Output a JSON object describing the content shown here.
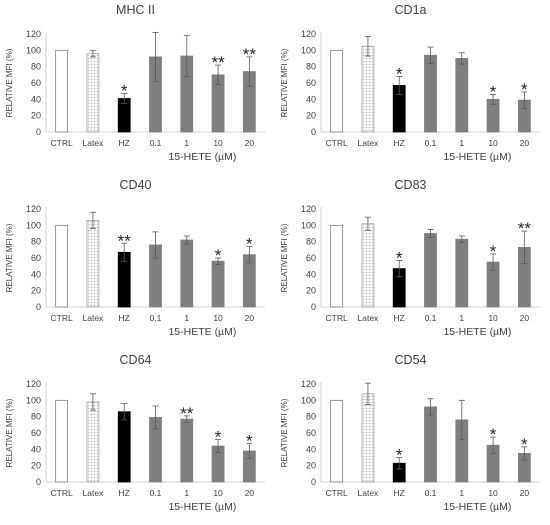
{
  "chart_data": [
    {
      "type": "bar",
      "title": "MHC II",
      "ylabel": "RELATIVE MFI (%)",
      "xlabel": "15-HETE (µM)",
      "categories": [
        "CTRL",
        "Latex",
        "HZ",
        "0.1",
        "1",
        "10",
        "20"
      ],
      "values": [
        100,
        96,
        41,
        92,
        93,
        70,
        74
      ],
      "errors": [
        0,
        4,
        6,
        30,
        25,
        12,
        18
      ],
      "significance": [
        "",
        "",
        "*",
        "",
        "",
        "**",
        "**"
      ],
      "bar_styles": [
        "white",
        "hatched",
        "black",
        "gray",
        "gray",
        "gray",
        "gray"
      ],
      "ylim": [
        0,
        120
      ],
      "yticks": [
        "0",
        "20",
        "40",
        "60",
        "80",
        "100",
        "120"
      ],
      "grid": false
    },
    {
      "type": "bar",
      "title": "CD1a",
      "ylabel": "RELATIVE MFI (%)",
      "xlabel": "15-HETE (µM)",
      "categories": [
        "CTRL",
        "Latex",
        "HZ",
        "0.1",
        "1",
        "10",
        "20"
      ],
      "values": [
        100,
        105,
        57,
        94,
        90,
        40,
        39
      ],
      "errors": [
        0,
        12,
        11,
        10,
        7,
        6,
        10
      ],
      "significance": [
        "",
        "",
        "*",
        "",
        "",
        "*",
        "*"
      ],
      "bar_styles": [
        "white",
        "hatched",
        "black",
        "gray",
        "gray",
        "gray",
        "gray"
      ],
      "ylim": [
        0,
        120
      ],
      "yticks": [
        "0",
        "20",
        "40",
        "60",
        "80",
        "100",
        "120"
      ],
      "grid": false
    },
    {
      "type": "bar",
      "title": "CD40",
      "ylabel": "RELATIVE MFI (%)",
      "xlabel": "15-HETE (µM)",
      "categories": [
        "CTRL",
        "Latex",
        "HZ",
        "0.1",
        "1",
        "10",
        "20"
      ],
      "values": [
        100,
        106,
        67,
        76,
        82,
        56,
        64
      ],
      "errors": [
        0,
        10,
        11,
        16,
        5,
        4,
        10
      ],
      "significance": [
        "",
        "",
        "**",
        "",
        "",
        "*",
        "*"
      ],
      "bar_styles": [
        "white",
        "hatched",
        "black",
        "gray",
        "gray",
        "gray",
        "gray"
      ],
      "ylim": [
        0,
        120
      ],
      "yticks": [
        "0",
        "20",
        "40",
        "60",
        "80",
        "100",
        "120"
      ],
      "grid": false
    },
    {
      "type": "bar",
      "title": "CD83",
      "ylabel": "RELATIVE MFI (%)",
      "xlabel": "15-HETE (µM)",
      "categories": [
        "CTRL",
        "Latex",
        "HZ",
        "0.1",
        "1",
        "10",
        "20"
      ],
      "values": [
        100,
        102,
        47,
        90,
        83,
        55,
        73
      ],
      "errors": [
        0,
        8,
        10,
        5,
        4,
        10,
        20
      ],
      "significance": [
        "",
        "",
        "*",
        "",
        "",
        "*",
        "**"
      ],
      "bar_styles": [
        "white",
        "hatched",
        "black",
        "gray",
        "gray",
        "gray",
        "gray"
      ],
      "ylim": [
        0,
        120
      ],
      "yticks": [
        "0",
        "20",
        "40",
        "60",
        "80",
        "100",
        "120"
      ],
      "grid": false
    },
    {
      "type": "bar",
      "title": "CD64",
      "ylabel": "RELATIVE MFI (%)",
      "xlabel": "15-HETE (µM)",
      "categories": [
        "CTRL",
        "Latex",
        "HZ",
        "0.1",
        "1",
        "10",
        "20"
      ],
      "values": [
        100,
        98,
        86,
        79,
        77,
        44,
        38
      ],
      "errors": [
        0,
        10,
        10,
        14,
        4,
        8,
        9
      ],
      "significance": [
        "",
        "",
        "",
        "",
        "**",
        "*",
        "*"
      ],
      "bar_styles": [
        "white",
        "hatched",
        "black",
        "gray",
        "gray",
        "gray",
        "gray"
      ],
      "ylim": [
        0,
        120
      ],
      "yticks": [
        "0",
        "20",
        "40",
        "60",
        "80",
        "100",
        "120"
      ],
      "grid": false
    },
    {
      "type": "bar",
      "title": "CD54",
      "ylabel": "RELATIVE MFI (%)",
      "xlabel": "15-HETE (µM)",
      "categories": [
        "CTRL",
        "Latex",
        "HZ",
        "0.1",
        "1",
        "10",
        "20"
      ],
      "values": [
        100,
        108,
        23,
        92,
        76,
        45,
        35
      ],
      "errors": [
        0,
        13,
        7,
        10,
        24,
        10,
        8
      ],
      "significance": [
        "",
        "",
        "*",
        "",
        "",
        "*",
        "*"
      ],
      "bar_styles": [
        "white",
        "hatched",
        "black",
        "gray",
        "gray",
        "gray",
        "gray"
      ],
      "ylim": [
        0,
        120
      ],
      "yticks": [
        "0",
        "20",
        "40",
        "60",
        "80",
        "100",
        "120"
      ],
      "grid": false
    }
  ]
}
